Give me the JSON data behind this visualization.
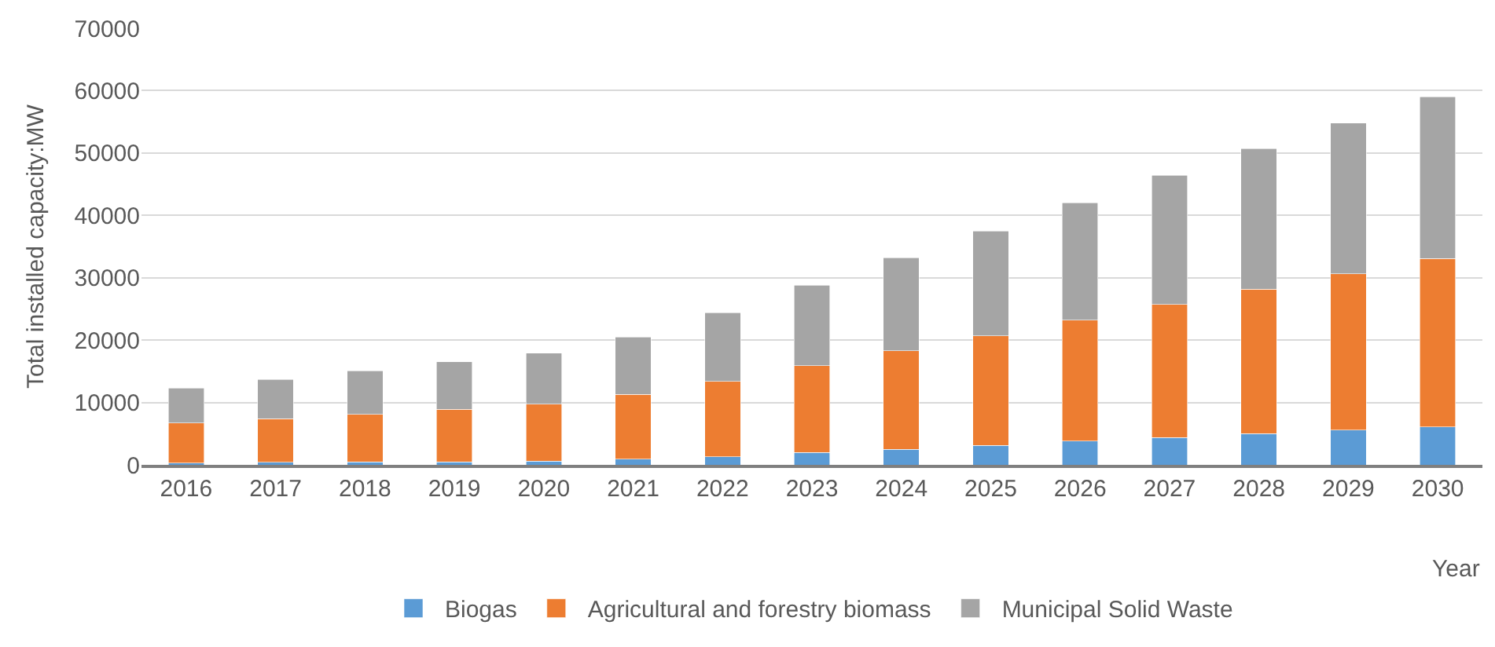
{
  "chart_data": {
    "type": "bar",
    "stacked": true,
    "xlabel": "Year",
    "ylabel": "Total installed capacity:MW",
    "categories": [
      "2016",
      "2017",
      "2018",
      "2019",
      "2020",
      "2021",
      "2022",
      "2023",
      "2024",
      "2025",
      "2026",
      "2027",
      "2028",
      "2029",
      "2030"
    ],
    "series": [
      {
        "name": "Biogas",
        "color": "#5b9bd5",
        "values": [
          300,
          400,
          500,
          500,
          600,
          900,
          1300,
          2000,
          2500,
          3100,
          3800,
          4400,
          5000,
          5600,
          6100
        ]
      },
      {
        "name": "Agricultural and forestry biomass",
        "color": "#ed7d31",
        "values": [
          6400,
          7000,
          7600,
          8400,
          9100,
          10400,
          12100,
          13900,
          15800,
          17600,
          19400,
          21300,
          23200,
          25000,
          27000
        ]
      },
      {
        "name": "Municipal Solid Waste",
        "color": "#a5a5a5",
        "values": [
          5600,
          6300,
          7000,
          7600,
          8200,
          9200,
          11000,
          12900,
          14900,
          16800,
          18800,
          20700,
          22500,
          24200,
          25900
        ]
      }
    ],
    "ylim": [
      0,
      70000
    ],
    "yticks": [
      0,
      10000,
      20000,
      30000,
      40000,
      50000,
      60000,
      70000
    ],
    "grid": "y",
    "legend": "bottom"
  }
}
